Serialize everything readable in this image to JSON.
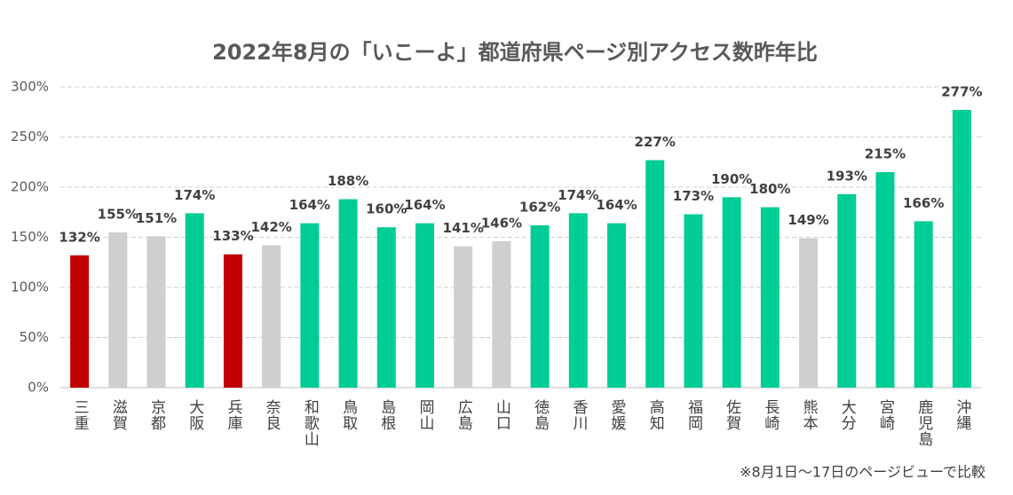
{
  "chart_data": {
    "type": "bar",
    "title": "2022年8月の「いこーよ」都道府県ページ別アクセス数昨年比",
    "categories": [
      "三重",
      "滋賀",
      "京都",
      "大阪",
      "兵庫",
      "奈良",
      "和歌山",
      "鳥取",
      "島根",
      "岡山",
      "広島",
      "山口",
      "徳島",
      "香川",
      "愛媛",
      "高知",
      "福岡",
      "佐賀",
      "長崎",
      "熊本",
      "大分",
      "宮崎",
      "鹿児島",
      "沖縄"
    ],
    "values": [
      132,
      155,
      151,
      174,
      133,
      142,
      164,
      188,
      160,
      164,
      141,
      146,
      162,
      174,
      164,
      227,
      173,
      190,
      180,
      149,
      193,
      215,
      166,
      277
    ],
    "value_labels": [
      "132%",
      "155%",
      "151%",
      "174%",
      "133%",
      "142%",
      "164%",
      "188%",
      "160%",
      "164%",
      "141%",
      "146%",
      "162%",
      "174%",
      "164%",
      "227%",
      "173%",
      "190%",
      "180%",
      "149%",
      "193%",
      "215%",
      "166%",
      "277%"
    ],
    "colors": [
      "#c00000",
      "#d0cece",
      "#d0cece",
      "#00cc96",
      "#c00000",
      "#d0cece",
      "#00cc96",
      "#00cc96",
      "#00cc96",
      "#00cc96",
      "#d0cece",
      "#d0cece",
      "#00cc96",
      "#00cc96",
      "#00cc96",
      "#00cc96",
      "#00cc96",
      "#00cc96",
      "#00cc96",
      "#d0cece",
      "#00cc96",
      "#00cc96",
      "#00cc96",
      "#00cc96"
    ],
    "ylim": [
      0,
      300
    ],
    "yticks": [
      {
        "value": 0,
        "label": "0%"
      },
      {
        "value": 50,
        "label": "50%"
      },
      {
        "value": 100,
        "label": "100%"
      },
      {
        "value": 150,
        "label": "150%"
      },
      {
        "value": 200,
        "label": "200%"
      },
      {
        "value": 250,
        "label": "250%"
      },
      {
        "value": 300,
        "label": "300%"
      }
    ],
    "grid": true,
    "note": "※8月1日～17日のページビューで比較"
  }
}
